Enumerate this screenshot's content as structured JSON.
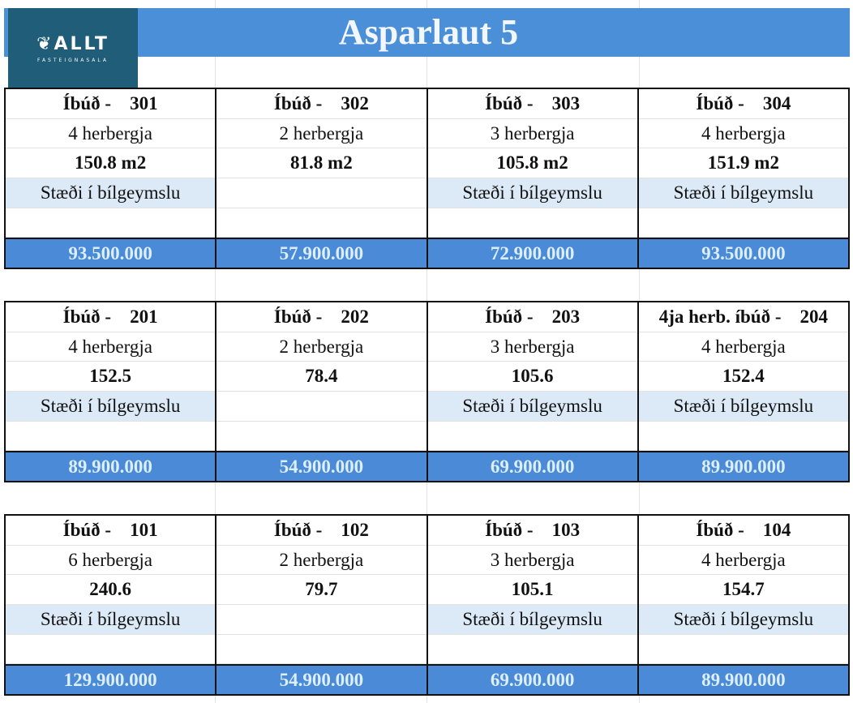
{
  "title": "Asparlaut 5",
  "logo": {
    "name": "ALLT",
    "tagline": "FASTEIGNASALA"
  },
  "colors": {
    "header": "#4a8fd8",
    "logo_bg": "#1f5d78",
    "parking_bg": "#dce9f6",
    "price_bg": "#4a8ad6"
  },
  "floors": [
    {
      "units": [
        {
          "label": "Íbúð -    301",
          "rooms": "4 herbergja",
          "size": "150.8 m2",
          "parking": "Stæði í bílgeymslu",
          "price": "93.500.000"
        },
        {
          "label": "Íbúð -    302",
          "rooms": "2 herbergja",
          "size": "81.8 m2",
          "parking": "",
          "price": "57.900.000"
        },
        {
          "label": "Íbúð -    303",
          "rooms": "3 herbergja",
          "size": "105.8 m2",
          "parking": "Stæði í bílgeymslu",
          "price": "72.900.000"
        },
        {
          "label": "Íbúð -    304",
          "rooms": "4 herbergja",
          "size": "151.9 m2",
          "parking": "Stæði í bílgeymslu",
          "price": "93.500.000"
        }
      ]
    },
    {
      "units": [
        {
          "label": "Íbúð -    201",
          "rooms": "4 herbergja",
          "size": "152.5",
          "parking": "Stæði í bílgeymslu",
          "price": "89.900.000"
        },
        {
          "label": "Íbúð -    202",
          "rooms": "2 herbergja",
          "size": "78.4",
          "parking": "",
          "price": "54.900.000"
        },
        {
          "label": "Íbúð -    203",
          "rooms": "3 herbergja",
          "size": "105.6",
          "parking": "Stæði í bílgeymslu",
          "price": "69.900.000"
        },
        {
          "label": "4ja herb. íbúð -    204",
          "rooms": "4 herbergja",
          "size": "152.4",
          "parking": "Stæði í bílgeymslu",
          "price": "89.900.000"
        }
      ]
    },
    {
      "units": [
        {
          "label": "Íbúð -    101",
          "rooms": "6 herbergja",
          "size": "240.6",
          "parking": "Stæði í bílgeymslu",
          "price": "129.900.000"
        },
        {
          "label": "Íbúð -    102",
          "rooms": "2 herbergja",
          "size": "79.7",
          "parking": "",
          "price": "54.900.000"
        },
        {
          "label": "Íbúð -    103",
          "rooms": "3 herbergja",
          "size": "105.1",
          "parking": "Stæði í bílgeymslu",
          "price": "69.900.000"
        },
        {
          "label": "Íbúð -    104",
          "rooms": "4 herbergja",
          "size": "154.7",
          "parking": "Stæði í bílgeymslu",
          "price": "89.900.000"
        }
      ]
    }
  ]
}
